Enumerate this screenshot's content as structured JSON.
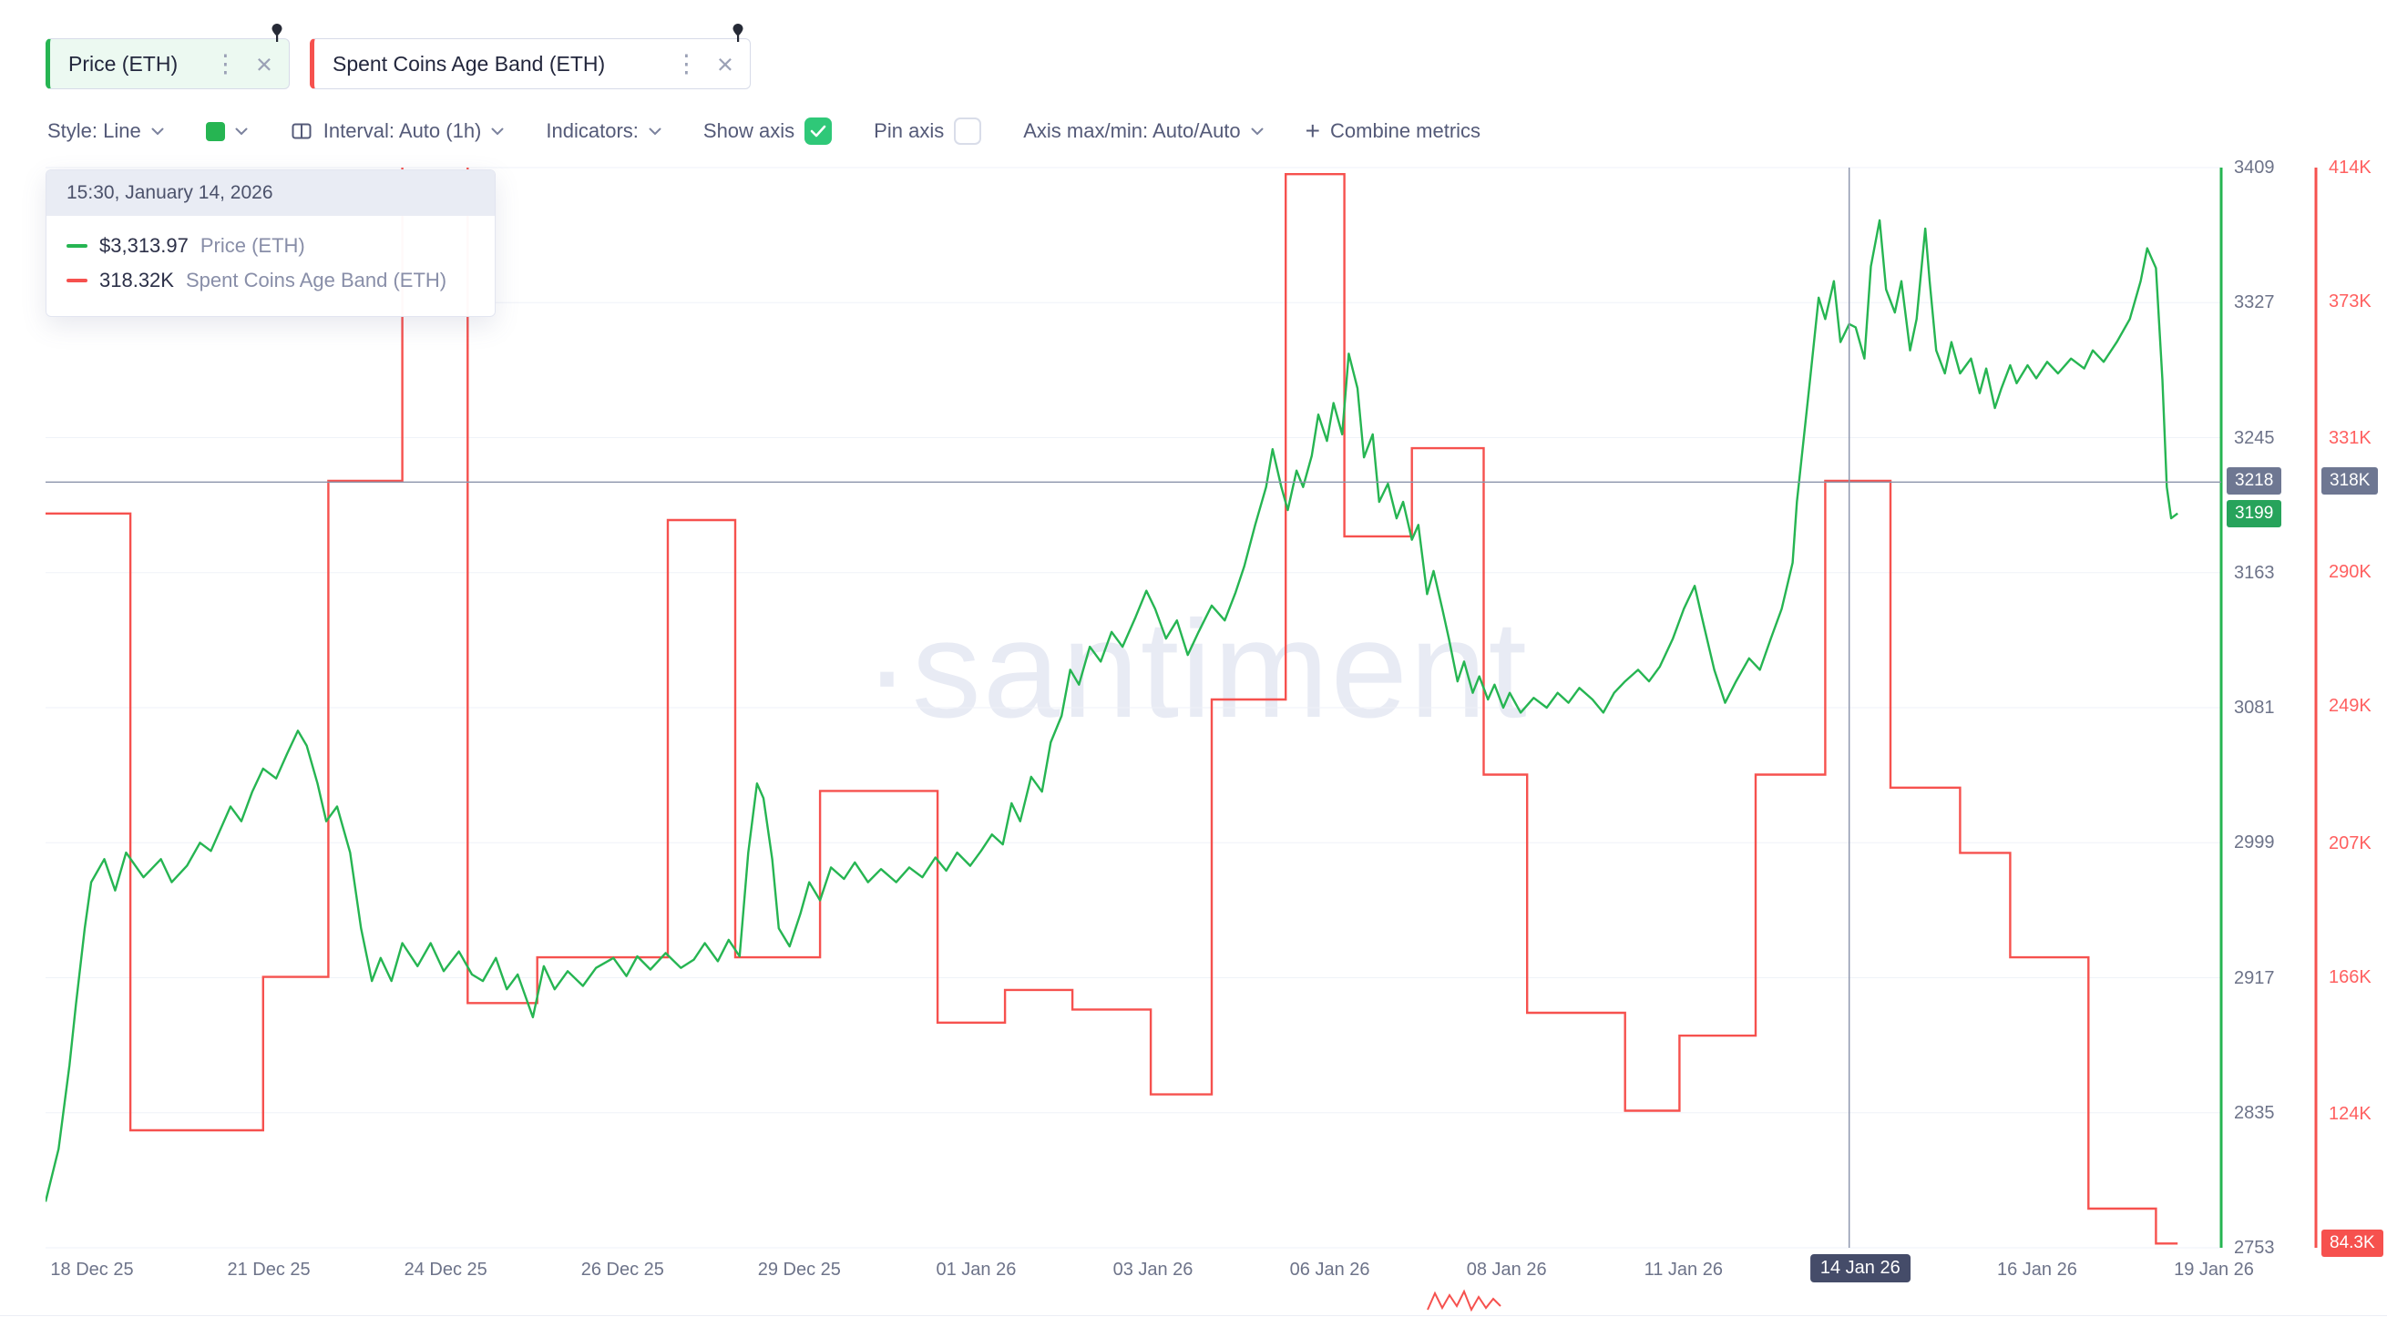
{
  "tabs": [
    {
      "label": "Price (ETH)",
      "color": "#26b552",
      "bg": "#ecf9f1"
    },
    {
      "label": "Spent Coins Age Band (ETH)",
      "color": "#f6514e",
      "bg": "#ffffff"
    }
  ],
  "toolbar": {
    "style_label": "Style: Line",
    "interval_label": "Interval: Auto (1h)",
    "indicators_label": "Indicators:",
    "show_axis_label": "Show axis",
    "show_axis_checked": true,
    "pin_axis_label": "Pin axis",
    "pin_axis_checked": false,
    "axis_maxmin_label": "Axis max/min: Auto/Auto",
    "combine_plus": "+",
    "combine_label": "Combine metrics"
  },
  "tooltip": {
    "header": "15:30, January 14, 2026",
    "rows": [
      {
        "value": "$3,313.97",
        "label": "Price (ETH)",
        "color": "#26b552"
      },
      {
        "value": "318.32K",
        "label": "Spent Coins Age Band (ETH)",
        "color": "#f6514e"
      }
    ]
  },
  "badges": {
    "crosshair_price": "3218",
    "crosshair_band": "318K",
    "last_price": "3199",
    "last_band": "84.3K"
  },
  "watermark": "·santiment",
  "chart_data": {
    "type": "line",
    "x_range": [
      "18 Dec 25",
      "19 Jan 26"
    ],
    "x_labels": [
      {
        "label": "18 Dec 25"
      },
      {
        "label": "21 Dec 25"
      },
      {
        "label": "24 Dec 25"
      },
      {
        "label": "26 Dec 25"
      },
      {
        "label": "29 Dec 25"
      },
      {
        "label": "01 Jan 26"
      },
      {
        "label": "03 Jan 26"
      },
      {
        "label": "06 Jan 26"
      },
      {
        "label": "08 Jan 26"
      },
      {
        "label": "11 Jan 26"
      },
      {
        "label": "14 Jan 26",
        "highlighted": true
      },
      {
        "label": "16 Jan 26"
      },
      {
        "label": "19 Jan 26"
      }
    ],
    "price_axis": {
      "min": 2753,
      "max": 3409,
      "ticks": [
        3409,
        3327,
        3245,
        3163,
        3081,
        2999,
        2917,
        2835,
        2753
      ],
      "color": "#6d7389"
    },
    "band_axis": {
      "min": 83,
      "max": 414,
      "ticks": [
        {
          "v": 414,
          "label": "414K"
        },
        {
          "v": 373,
          "label": "373K"
        },
        {
          "v": 331,
          "label": "331K"
        },
        {
          "v": 290,
          "label": "290K"
        },
        {
          "v": 249,
          "label": "249K"
        },
        {
          "v": 207,
          "label": "207K"
        },
        {
          "v": 166,
          "label": "166K"
        },
        {
          "v": 124,
          "label": "124K"
        }
      ],
      "color": "#ff6060"
    },
    "crosshair": {
      "x_frac": 0.829,
      "price": 3218,
      "band_label": "318K",
      "date_label": "14 Jan 26"
    },
    "last_values": {
      "price": 3199,
      "band": 84.3
    },
    "series": [
      {
        "name": "Price (ETH)",
        "type": "line",
        "axis": "price",
        "color": "#26b552",
        "points": [
          [
            0,
            2781
          ],
          [
            0.006,
            2813
          ],
          [
            0.011,
            2864
          ],
          [
            0.014,
            2901
          ],
          [
            0.018,
            2947
          ],
          [
            0.021,
            2975
          ],
          [
            0.027,
            2989
          ],
          [
            0.032,
            2970
          ],
          [
            0.037,
            2993
          ],
          [
            0.045,
            2978
          ],
          [
            0.053,
            2989
          ],
          [
            0.058,
            2975
          ],
          [
            0.065,
            2985
          ],
          [
            0.071,
            2999
          ],
          [
            0.076,
            2994
          ],
          [
            0.085,
            3021
          ],
          [
            0.09,
            3012
          ],
          [
            0.095,
            3030
          ],
          [
            0.1,
            3044
          ],
          [
            0.106,
            3038
          ],
          [
            0.111,
            3053
          ],
          [
            0.116,
            3067
          ],
          [
            0.12,
            3058
          ],
          [
            0.125,
            3035
          ],
          [
            0.129,
            3012
          ],
          [
            0.134,
            3021
          ],
          [
            0.14,
            2993
          ],
          [
            0.145,
            2947
          ],
          [
            0.15,
            2915
          ],
          [
            0.154,
            2929
          ],
          [
            0.159,
            2915
          ],
          [
            0.164,
            2938
          ],
          [
            0.171,
            2924
          ],
          [
            0.177,
            2938
          ],
          [
            0.183,
            2921
          ],
          [
            0.19,
            2933
          ],
          [
            0.196,
            2919
          ],
          [
            0.201,
            2915
          ],
          [
            0.207,
            2929
          ],
          [
            0.212,
            2910
          ],
          [
            0.217,
            2919
          ],
          [
            0.224,
            2893
          ],
          [
            0.229,
            2924
          ],
          [
            0.234,
            2910
          ],
          [
            0.24,
            2921
          ],
          [
            0.247,
            2912
          ],
          [
            0.253,
            2923
          ],
          [
            0.261,
            2929
          ],
          [
            0.267,
            2918
          ],
          [
            0.272,
            2930
          ],
          [
            0.278,
            2922
          ],
          [
            0.285,
            2932
          ],
          [
            0.292,
            2923
          ],
          [
            0.298,
            2928
          ],
          [
            0.303,
            2938
          ],
          [
            0.309,
            2927
          ],
          [
            0.314,
            2940
          ],
          [
            0.319,
            2930
          ],
          [
            0.323,
            2993
          ],
          [
            0.327,
            3035
          ],
          [
            0.33,
            3026
          ],
          [
            0.334,
            2989
          ],
          [
            0.337,
            2947
          ],
          [
            0.342,
            2936
          ],
          [
            0.347,
            2956
          ],
          [
            0.351,
            2975
          ],
          [
            0.356,
            2964
          ],
          [
            0.361,
            2984
          ],
          [
            0.367,
            2977
          ],
          [
            0.372,
            2987
          ],
          [
            0.378,
            2975
          ],
          [
            0.384,
            2983
          ],
          [
            0.391,
            2975
          ],
          [
            0.397,
            2984
          ],
          [
            0.403,
            2978
          ],
          [
            0.409,
            2990
          ],
          [
            0.414,
            2982
          ],
          [
            0.419,
            2993
          ],
          [
            0.425,
            2985
          ],
          [
            0.43,
            2994
          ],
          [
            0.435,
            3004
          ],
          [
            0.44,
            2998
          ],
          [
            0.444,
            3023
          ],
          [
            0.448,
            3012
          ],
          [
            0.453,
            3039
          ],
          [
            0.458,
            3030
          ],
          [
            0.462,
            3060
          ],
          [
            0.467,
            3076
          ],
          [
            0.471,
            3104
          ],
          [
            0.475,
            3095
          ],
          [
            0.48,
            3118
          ],
          [
            0.485,
            3109
          ],
          [
            0.49,
            3127
          ],
          [
            0.495,
            3118
          ],
          [
            0.501,
            3136
          ],
          [
            0.506,
            3152
          ],
          [
            0.51,
            3141
          ],
          [
            0.515,
            3123
          ],
          [
            0.52,
            3134
          ],
          [
            0.525,
            3113
          ],
          [
            0.53,
            3127
          ],
          [
            0.536,
            3143
          ],
          [
            0.542,
            3134
          ],
          [
            0.547,
            3151
          ],
          [
            0.551,
            3167
          ],
          [
            0.556,
            3192
          ],
          [
            0.561,
            3215
          ],
          [
            0.564,
            3238
          ],
          [
            0.568,
            3215
          ],
          [
            0.571,
            3201
          ],
          [
            0.575,
            3225
          ],
          [
            0.578,
            3215
          ],
          [
            0.582,
            3234
          ],
          [
            0.585,
            3259
          ],
          [
            0.589,
            3243
          ],
          [
            0.592,
            3266
          ],
          [
            0.596,
            3247
          ],
          [
            0.599,
            3296
          ],
          [
            0.603,
            3275
          ],
          [
            0.606,
            3233
          ],
          [
            0.61,
            3247
          ],
          [
            0.613,
            3206
          ],
          [
            0.617,
            3217
          ],
          [
            0.621,
            3196
          ],
          [
            0.624,
            3206
          ],
          [
            0.628,
            3183
          ],
          [
            0.631,
            3192
          ],
          [
            0.635,
            3150
          ],
          [
            0.638,
            3164
          ],
          [
            0.642,
            3141
          ],
          [
            0.645,
            3123
          ],
          [
            0.649,
            3097
          ],
          [
            0.652,
            3109
          ],
          [
            0.656,
            3090
          ],
          [
            0.659,
            3100
          ],
          [
            0.663,
            3086
          ],
          [
            0.666,
            3095
          ],
          [
            0.67,
            3081
          ],
          [
            0.673,
            3090
          ],
          [
            0.678,
            3078
          ],
          [
            0.684,
            3087
          ],
          [
            0.69,
            3081
          ],
          [
            0.695,
            3090
          ],
          [
            0.7,
            3084
          ],
          [
            0.705,
            3093
          ],
          [
            0.711,
            3086
          ],
          [
            0.716,
            3078
          ],
          [
            0.721,
            3090
          ],
          [
            0.726,
            3097
          ],
          [
            0.732,
            3104
          ],
          [
            0.737,
            3097
          ],
          [
            0.742,
            3106
          ],
          [
            0.748,
            3123
          ],
          [
            0.753,
            3141
          ],
          [
            0.758,
            3155
          ],
          [
            0.762,
            3132
          ],
          [
            0.767,
            3104
          ],
          [
            0.772,
            3084
          ],
          [
            0.777,
            3097
          ],
          [
            0.783,
            3111
          ],
          [
            0.788,
            3104
          ],
          [
            0.793,
            3123
          ],
          [
            0.798,
            3141
          ],
          [
            0.803,
            3169
          ],
          [
            0.805,
            3206
          ],
          [
            0.808,
            3243
          ],
          [
            0.811,
            3280
          ],
          [
            0.815,
            3330
          ],
          [
            0.818,
            3317
          ],
          [
            0.822,
            3340
          ],
          [
            0.825,
            3303
          ],
          [
            0.829,
            3314
          ],
          [
            0.832,
            3312
          ],
          [
            0.836,
            3293
          ],
          [
            0.839,
            3349
          ],
          [
            0.843,
            3377
          ],
          [
            0.846,
            3335
          ],
          [
            0.85,
            3321
          ],
          [
            0.853,
            3340
          ],
          [
            0.857,
            3298
          ],
          [
            0.86,
            3317
          ],
          [
            0.864,
            3372
          ],
          [
            0.866,
            3340
          ],
          [
            0.869,
            3298
          ],
          [
            0.873,
            3284
          ],
          [
            0.876,
            3303
          ],
          [
            0.88,
            3284
          ],
          [
            0.885,
            3293
          ],
          [
            0.889,
            3272
          ],
          [
            0.892,
            3287
          ],
          [
            0.896,
            3263
          ],
          [
            0.899,
            3275
          ],
          [
            0.903,
            3289
          ],
          [
            0.906,
            3278
          ],
          [
            0.911,
            3289
          ],
          [
            0.915,
            3281
          ],
          [
            0.92,
            3291
          ],
          [
            0.925,
            3284
          ],
          [
            0.931,
            3293
          ],
          [
            0.937,
            3287
          ],
          [
            0.941,
            3298
          ],
          [
            0.946,
            3291
          ],
          [
            0.952,
            3303
          ],
          [
            0.958,
            3317
          ],
          [
            0.963,
            3340
          ],
          [
            0.966,
            3360
          ],
          [
            0.97,
            3348
          ],
          [
            0.973,
            3280
          ],
          [
            0.975,
            3215
          ],
          [
            0.977,
            3196
          ],
          [
            0.98,
            3199
          ]
        ]
      },
      {
        "name": "Spent Coins Age Band (ETH)",
        "type": "step",
        "axis": "band",
        "color": "#f6514e",
        "unit": "K",
        "segments": [
          [
            0,
            0.039,
            308
          ],
          [
            0.039,
            0.1,
            119
          ],
          [
            0.1,
            0.13,
            166
          ],
          [
            0.13,
            0.164,
            318
          ],
          [
            0.164,
            0.194,
            430
          ],
          [
            0.194,
            0.226,
            158
          ],
          [
            0.226,
            0.286,
            172
          ],
          [
            0.286,
            0.317,
            306
          ],
          [
            0.317,
            0.356,
            172
          ],
          [
            0.356,
            0.41,
            223
          ],
          [
            0.41,
            0.441,
            152
          ],
          [
            0.441,
            0.472,
            162
          ],
          [
            0.472,
            0.508,
            156
          ],
          [
            0.508,
            0.536,
            130
          ],
          [
            0.536,
            0.57,
            251
          ],
          [
            0.57,
            0.597,
            412
          ],
          [
            0.597,
            0.628,
            301
          ],
          [
            0.628,
            0.661,
            328
          ],
          [
            0.661,
            0.681,
            228
          ],
          [
            0.681,
            0.726,
            155
          ],
          [
            0.726,
            0.751,
            125
          ],
          [
            0.751,
            0.786,
            148
          ],
          [
            0.786,
            0.818,
            228
          ],
          [
            0.818,
            0.848,
            318
          ],
          [
            0.848,
            0.88,
            224
          ],
          [
            0.88,
            0.903,
            204
          ],
          [
            0.903,
            0.939,
            172
          ],
          [
            0.939,
            0.97,
            95
          ],
          [
            0.97,
            0.98,
            84.3
          ]
        ]
      }
    ]
  }
}
